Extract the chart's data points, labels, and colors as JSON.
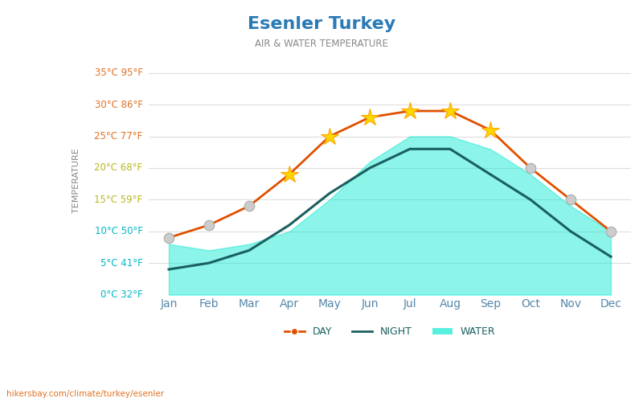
{
  "title": "Esenler Turkey",
  "subtitle": "AIR & WATER TEMPERATURE",
  "months": [
    "Jan",
    "Feb",
    "Mar",
    "Apr",
    "May",
    "Jun",
    "Jul",
    "Aug",
    "Sep",
    "Oct",
    "Nov",
    "Dec"
  ],
  "day_temps": [
    9,
    11,
    14,
    19,
    25,
    28,
    29,
    29,
    26,
    20,
    15,
    10
  ],
  "night_temps": [
    4,
    5,
    7,
    11,
    16,
    20,
    23,
    23,
    19,
    15,
    10,
    6
  ],
  "water_temps": [
    8,
    7,
    8,
    10,
    15,
    21,
    25,
    25,
    23,
    19,
    14,
    10
  ],
  "water_bottom": [
    0,
    0,
    0,
    0,
    0,
    0,
    0,
    0,
    0,
    0,
    0,
    0
  ],
  "ylim": [
    0,
    37
  ],
  "yticks_c": [
    0,
    5,
    10,
    15,
    20,
    25,
    30,
    35
  ],
  "ytick_labels": [
    "0°C 32°F",
    "5°C 41°F",
    "10°C 50°F",
    "15°C 59°F",
    "20°C 68°F",
    "25°C 77°F",
    "30°C 86°F",
    "35°C 95°F"
  ],
  "day_color": "#e05000",
  "night_color": "#1a6060",
  "water_color": "#00e8d0",
  "water_alpha": 0.45,
  "bg_color": "#ffffff",
  "title_color": "#2a7ab5",
  "subtitle_color": "#888888",
  "ylabel_color": "#888888",
  "ytick_color_orange": "#e07020",
  "ytick_color_yellow": "#b8b820",
  "ytick_color_cyan": "#00b8c8",
  "grid_color": "#dddddd",
  "axis_label_color": "#5588aa",
  "footnote": "hikersbay.com/climate/turkey/esenler",
  "footnote_color": "#e07020",
  "sun_months": [
    3,
    4,
    5,
    6,
    7,
    8
  ],
  "cloud_months": [
    0,
    1,
    2,
    9,
    10,
    11
  ]
}
